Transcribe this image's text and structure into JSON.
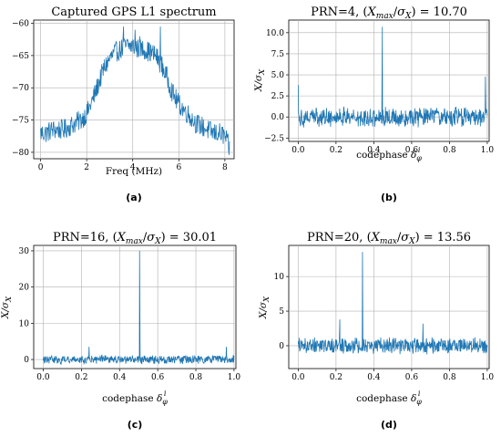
{
  "captions": [
    "(a)",
    "(b)",
    "(c)",
    "(d)"
  ],
  "chart_data": [
    {
      "type": "line",
      "title": "Captured GPS L1 spectrum",
      "xlabel": "Freq (MHz)",
      "ylabel": "",
      "xlim": [
        -0.3,
        8.4
      ],
      "ylim": [
        -81,
        -59.5
      ],
      "xticks": [
        0,
        2,
        4,
        6,
        8
      ],
      "xtick_labels": [
        "0",
        "2",
        "4",
        "6",
        "8"
      ],
      "yticks": [
        -80,
        -75,
        -70,
        -65,
        -60
      ],
      "ytick_labels": [
        "−80",
        "−75",
        "−70",
        "−65",
        "−60"
      ],
      "grid": true,
      "color": "#1f77b4",
      "x": [
        0,
        0.25,
        0.5,
        0.75,
        1.0,
        1.25,
        1.5,
        1.75,
        2.0,
        2.25,
        2.5,
        2.75,
        3.0,
        3.25,
        3.5,
        3.75,
        4.0,
        4.25,
        4.5,
        4.75,
        5.0,
        5.25,
        5.5,
        5.75,
        6.0,
        6.25,
        6.5,
        6.75,
        7.0,
        7.25,
        7.5,
        7.75,
        8.0,
        8.2
      ],
      "y": [
        -77,
        -77,
        -76.5,
        -76.5,
        -76.5,
        -76,
        -75.5,
        -75,
        -74,
        -72,
        -69.5,
        -67,
        -65.5,
        -64.5,
        -64,
        -63.5,
        -63.5,
        -64,
        -64,
        -64.5,
        -65,
        -66.5,
        -68.5,
        -71,
        -72.5,
        -73.5,
        -74.5,
        -75.5,
        -76,
        -76.5,
        -77,
        -77,
        -77.5,
        -79.5
      ],
      "spikes": [
        {
          "x": 3.6,
          "y": -60.5
        },
        {
          "x": 4.1,
          "y": -61
        },
        {
          "x": 4.3,
          "y": -62
        },
        {
          "x": 5.2,
          "y": -60.5
        }
      ],
      "noise_amplitude": 1.6
    },
    {
      "type": "line",
      "title": "PRN=4, (X_max/σ_X) = 10.70",
      "title_parts": {
        "prefix": "PRN=4, (",
        "num": "X",
        "num_sub": "max",
        "den": "σ",
        "den_sub": "X",
        "suffix": ") = 10.70"
      },
      "xlabel": "codephase δ_φ",
      "xlabel_parts": {
        "text": "codephase ",
        "sym": "δ",
        "sub": "φ",
        "sup": "i"
      },
      "ylabel": "X/σ_X",
      "ylabel_parts": {
        "a": "X/σ",
        "sub": "X"
      },
      "xlim": [
        -0.05,
        1.01
      ],
      "ylim": [
        -2.9,
        11.5
      ],
      "xticks": [
        0,
        0.2,
        0.4,
        0.6,
        0.8,
        1.0
      ],
      "xtick_labels": [
        "0.0",
        "0.2",
        "0.4",
        "0.6",
        "0.8",
        "1.0"
      ],
      "yticks": [
        -2.5,
        0,
        2.5,
        5,
        7.5,
        10
      ],
      "ytick_labels": [
        "−2.5",
        "0.0",
        "2.5",
        "5.0",
        "7.5",
        "10.0"
      ],
      "grid": true,
      "color": "#1f77b4",
      "noise_amplitude": 1.3,
      "peak": {
        "x": 0.445,
        "y": 10.7
      },
      "extra_spikes": [
        {
          "x": 0.0,
          "y": 3.8
        },
        {
          "x": 0.99,
          "y": 4.8
        }
      ]
    },
    {
      "type": "line",
      "title": "PRN=16, (X_max/σ_X) = 30.01",
      "title_parts": {
        "prefix": "PRN=16, (",
        "num": "X",
        "num_sub": "max",
        "den": "σ",
        "den_sub": "X",
        "suffix": ") = 30.01"
      },
      "xlabel": "codephase δ_φ",
      "xlabel_parts": {
        "text": "codephase ",
        "sym": "δ",
        "sub": "φ",
        "sup": "i"
      },
      "ylabel": "X/σ_X",
      "ylabel_parts": {
        "a": "X/σ",
        "sub": "X"
      },
      "xlim": [
        -0.05,
        1.01
      ],
      "ylim": [
        -2.5,
        31.5
      ],
      "xticks": [
        0,
        0.2,
        0.4,
        0.6,
        0.8,
        1.0
      ],
      "xtick_labels": [
        "0.0",
        "0.2",
        "0.4",
        "0.6",
        "0.8",
        "1.0"
      ],
      "yticks": [
        0,
        10,
        20,
        30
      ],
      "ytick_labels": [
        "0",
        "10",
        "20",
        "30"
      ],
      "grid": true,
      "color": "#1f77b4",
      "noise_amplitude": 1.3,
      "peak": {
        "x": 0.505,
        "y": 30.01
      },
      "extra_spikes": [
        {
          "x": 0.24,
          "y": 3.5
        },
        {
          "x": 0.96,
          "y": 3.5
        }
      ]
    },
    {
      "type": "line",
      "title": "PRN=20, (X_max/σ_X) = 13.56",
      "title_parts": {
        "prefix": "PRN=20, (",
        "num": "X",
        "num_sub": "max",
        "den": "σ",
        "den_sub": "X",
        "suffix": ") = 13.56"
      },
      "xlabel": "codephase δ_φ",
      "xlabel_parts": {
        "text": "codephase ",
        "sym": "δ",
        "sub": "φ",
        "sup": "i"
      },
      "ylabel": "X/σ_X",
      "ylabel_parts": {
        "a": "X/σ",
        "sub": "X"
      },
      "xlim": [
        -0.05,
        1.01
      ],
      "ylim": [
        -3.3,
        14.5
      ],
      "xticks": [
        0,
        0.2,
        0.4,
        0.6,
        0.8,
        1.0
      ],
      "xtick_labels": [
        "0.0",
        "0.2",
        "0.4",
        "0.6",
        "0.8",
        "1.0"
      ],
      "yticks": [
        0,
        5,
        10
      ],
      "ytick_labels": [
        "0",
        "5",
        "10"
      ],
      "grid": true,
      "color": "#1f77b4",
      "noise_amplitude": 1.3,
      "peak": {
        "x": 0.34,
        "y": 13.56
      },
      "extra_spikes": [
        {
          "x": 0.22,
          "y": 3.8
        },
        {
          "x": 0.66,
          "y": 3.2
        }
      ]
    }
  ]
}
